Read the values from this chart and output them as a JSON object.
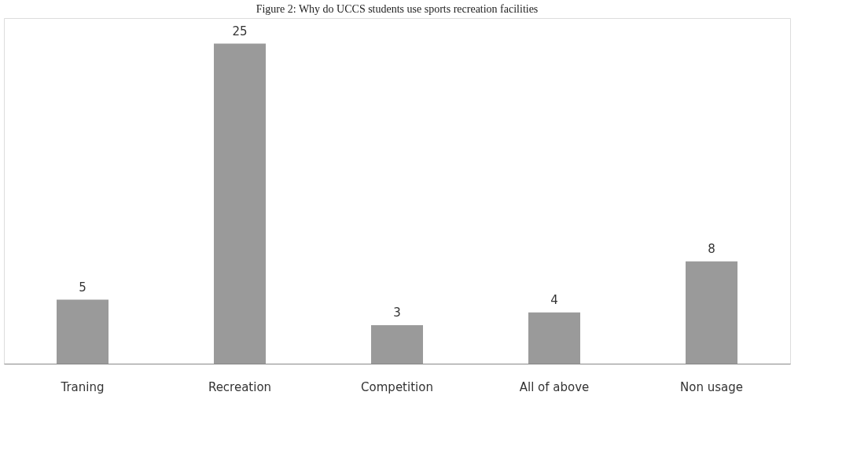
{
  "chart_data": {
    "type": "bar",
    "title": "Figure 2: Why do UCCS students use sports recreation facilities",
    "categories": [
      "Traning",
      "Recreation",
      "Competition",
      "All of above",
      "Non usage"
    ],
    "values": [
      5,
      25,
      3,
      4,
      8
    ],
    "color": "#9a9a9a",
    "data_labels": true
  }
}
